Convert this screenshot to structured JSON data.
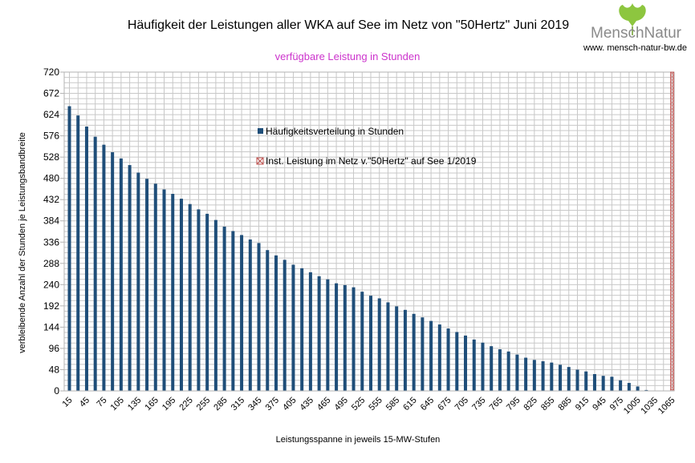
{
  "logo": {
    "name": "MenschNatur",
    "url": "www. mensch-natur-bw.de"
  },
  "chart_data": {
    "type": "bar",
    "title": "Häufigkeit der Leistungen aller WKA auf See im Netz von \"50Hertz\" Juni 2019",
    "subtitle": "verfügbare Leistung in Stunden",
    "xlabel": "Leistungsspanne in jeweils 15-MW-Stufen",
    "ylabel": "verbleibende Anzahl der Stunden je Leistungsbandbreite",
    "ylim": [
      0,
      720
    ],
    "yticks": [
      0,
      48,
      96,
      144,
      192,
      240,
      288,
      336,
      384,
      432,
      480,
      528,
      576,
      624,
      672,
      720
    ],
    "xtick_labels": [
      "15",
      "45",
      "75",
      "105",
      "135",
      "165",
      "195",
      "225",
      "255",
      "285",
      "315",
      "345",
      "375",
      "405",
      "435",
      "465",
      "495",
      "525",
      "555",
      "585",
      "615",
      "645",
      "675",
      "705",
      "735",
      "765",
      "795",
      "825",
      "855",
      "885",
      "915",
      "945",
      "975",
      "1005",
      "1035",
      "1065"
    ],
    "grid": true,
    "legend_placement": "upper-center inside plot",
    "colors": {
      "bars": "#1f4e79",
      "installed_marker": "#c0504d",
      "subtitle": "#cc33cc"
    },
    "series": [
      {
        "name": "Häufigkeitsverteilung in Stunden",
        "categories": [
          15,
          30,
          45,
          60,
          75,
          90,
          105,
          120,
          135,
          150,
          165,
          180,
          195,
          210,
          225,
          240,
          255,
          270,
          285,
          300,
          315,
          330,
          345,
          360,
          375,
          390,
          405,
          420,
          435,
          450,
          465,
          480,
          495,
          510,
          525,
          540,
          555,
          570,
          585,
          600,
          615,
          630,
          645,
          660,
          675,
          690,
          705,
          720,
          735,
          750,
          765,
          780,
          795,
          810,
          825,
          840,
          855,
          870,
          885,
          900,
          915,
          930,
          945,
          960,
          975,
          990,
          1005,
          1020,
          1035,
          1050,
          1065
        ],
        "values": [
          643,
          622,
          597,
          574,
          556,
          539,
          525,
          510,
          493,
          479,
          468,
          455,
          445,
          434,
          422,
          410,
          400,
          386,
          371,
          361,
          352,
          342,
          334,
          318,
          306,
          296,
          285,
          277,
          268,
          259,
          252,
          243,
          239,
          234,
          224,
          215,
          209,
          200,
          191,
          183,
          174,
          166,
          158,
          150,
          141,
          133,
          125,
          116,
          109,
          101,
          94,
          89,
          82,
          75,
          70,
          67,
          64,
          59,
          54,
          48,
          44,
          38,
          34,
          32,
          24,
          18,
          10,
          2,
          0,
          0,
          0
        ]
      },
      {
        "name": "Inst. Leistung im Netz v.\"50Hertz\" auf See 1/2019",
        "x": 1065,
        "value": 720
      }
    ]
  }
}
